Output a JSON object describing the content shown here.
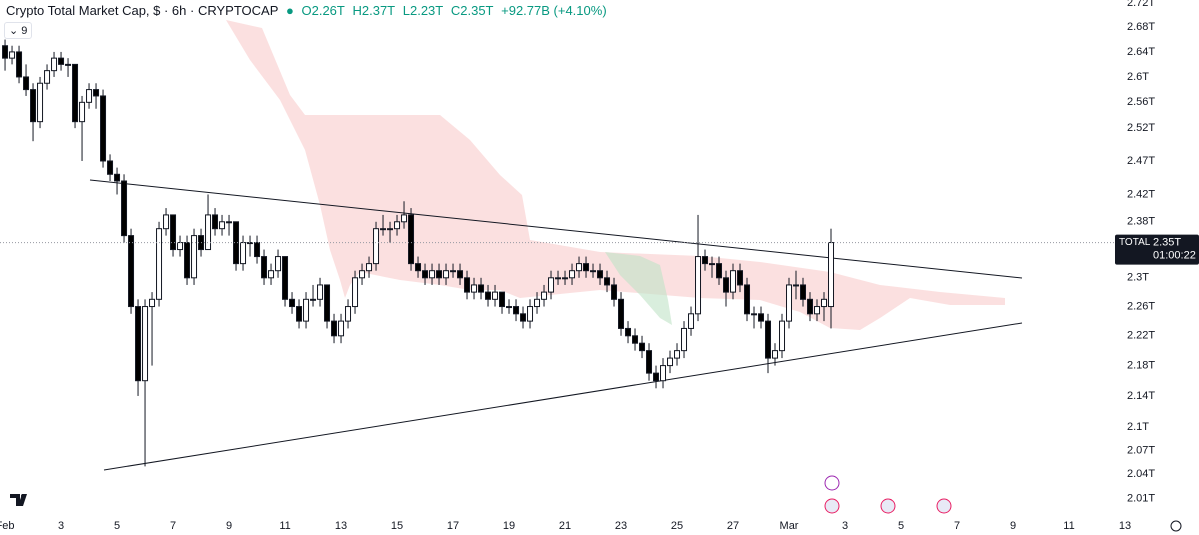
{
  "header": {
    "title": "Crypto Total Market Cap, $ · 6h · CRYPTOCAP",
    "open": "O2.26T",
    "high": "H2.37T",
    "low": "L2.23T",
    "close": "C2.35T",
    "change": "+92.77B (+4.10%)",
    "indicators": "9"
  },
  "chart_data": {
    "type": "candlestick",
    "log_scale": true,
    "up_color": "#ffffff",
    "down_color": "#000000",
    "ylim": [
      1.99,
      2.725
    ],
    "xlim": [
      -0.18,
      41.25
    ],
    "yticks": [
      {
        "value": 2.72,
        "label": "2.72T"
      },
      {
        "value": 2.68,
        "label": "2.68T"
      },
      {
        "value": 2.64,
        "label": "2.64T"
      },
      {
        "value": 2.6,
        "label": "2.6T"
      },
      {
        "value": 2.56,
        "label": "2.56T"
      },
      {
        "value": 2.52,
        "label": "2.52T"
      },
      {
        "value": 2.47,
        "label": "2.47T"
      },
      {
        "value": 2.42,
        "label": "2.42T"
      },
      {
        "value": 2.38,
        "label": "2.38T"
      },
      {
        "value": 2.3,
        "label": "2.3T"
      },
      {
        "value": 2.26,
        "label": "2.26T"
      },
      {
        "value": 2.22,
        "label": "2.22T"
      },
      {
        "value": 2.18,
        "label": "2.18T"
      },
      {
        "value": 2.14,
        "label": "2.14T"
      },
      {
        "value": 2.1,
        "label": "2.1T"
      },
      {
        "value": 2.07,
        "label": "2.07T"
      },
      {
        "value": 2.04,
        "label": "2.04T"
      },
      {
        "value": 2.01,
        "label": "2.01T"
      }
    ],
    "xticks": [
      {
        "value": 0,
        "label": "Feb"
      },
      {
        "value": 2,
        "label": "3"
      },
      {
        "value": 4,
        "label": "5"
      },
      {
        "value": 6,
        "label": "7"
      },
      {
        "value": 8,
        "label": "9"
      },
      {
        "value": 10,
        "label": "11"
      },
      {
        "value": 12,
        "label": "13"
      },
      {
        "value": 14,
        "label": "15"
      },
      {
        "value": 16,
        "label": "17"
      },
      {
        "value": 18,
        "label": "19"
      },
      {
        "value": 20,
        "label": "21"
      },
      {
        "value": 22,
        "label": "23"
      },
      {
        "value": 24,
        "label": "25"
      },
      {
        "value": 26,
        "label": "27"
      },
      {
        "value": 28,
        "label": "Mar"
      },
      {
        "value": 30,
        "label": "3"
      },
      {
        "value": 32,
        "label": "5"
      },
      {
        "value": 34,
        "label": "7"
      },
      {
        "value": 36,
        "label": "9"
      },
      {
        "value": 38,
        "label": "11"
      },
      {
        "value": 40,
        "label": "13"
      }
    ],
    "price_line": {
      "name": "TOTAL",
      "value": 2.35,
      "label": "2.35T",
      "countdown": "01:00:22"
    },
    "x": [
      0,
      0.25,
      0.5,
      0.75,
      1,
      1.25,
      1.5,
      1.75,
      2,
      2.25,
      2.5,
      2.75,
      3,
      3.25,
      3.5,
      3.75,
      4,
      4.25,
      4.5,
      4.75,
      5,
      5.25,
      5.5,
      5.75,
      6,
      6.25,
      6.5,
      6.75,
      7,
      7.25,
      7.5,
      7.75,
      8,
      8.25,
      8.5,
      8.75,
      9,
      9.25,
      9.5,
      9.75,
      10,
      10.25,
      10.5,
      10.75,
      11,
      11.25,
      11.5,
      11.75,
      12,
      12.25,
      12.5,
      12.75,
      13,
      13.25,
      13.5,
      13.75,
      14,
      14.25,
      14.5,
      14.75,
      15,
      15.25,
      15.5,
      15.75,
      16,
      16.25,
      16.5,
      16.75,
      17,
      17.25,
      17.5,
      17.75,
      18,
      18.25,
      18.5,
      18.75,
      19,
      19.25,
      19.5,
      19.75,
      20,
      20.25,
      20.5,
      20.75,
      21,
      21.25,
      21.5,
      21.75,
      22,
      22.25,
      22.5,
      22.75,
      23,
      23.25,
      23.5,
      23.75,
      24,
      24.25,
      24.5,
      24.75,
      25,
      25.25,
      25.5,
      25.75,
      26,
      26.25,
      26.5,
      26.75,
      27,
      27.25,
      27.5,
      27.75,
      28,
      28.25,
      28.5,
      28.75,
      29,
      29.25,
      29.5
    ],
    "ohlc": [
      [
        2.65,
        2.66,
        2.61,
        2.63
      ],
      [
        2.63,
        2.65,
        2.62,
        2.64
      ],
      [
        2.64,
        2.65,
        2.59,
        2.6
      ],
      [
        2.6,
        2.62,
        2.57,
        2.58
      ],
      [
        2.58,
        2.59,
        2.5,
        2.53
      ],
      [
        2.53,
        2.6,
        2.52,
        2.59
      ],
      [
        2.59,
        2.62,
        2.58,
        2.61
      ],
      [
        2.61,
        2.64,
        2.6,
        2.63
      ],
      [
        2.63,
        2.64,
        2.61,
        2.62
      ],
      [
        2.62,
        2.63,
        2.6,
        2.62
      ],
      [
        2.62,
        2.62,
        2.52,
        2.53
      ],
      [
        2.53,
        2.57,
        2.47,
        2.56
      ],
      [
        2.56,
        2.59,
        2.55,
        2.58
      ],
      [
        2.58,
        2.59,
        2.55,
        2.57
      ],
      [
        2.57,
        2.58,
        2.46,
        2.47
      ],
      [
        2.47,
        2.48,
        2.44,
        2.45
      ],
      [
        2.45,
        2.46,
        2.42,
        2.44
      ],
      [
        2.44,
        2.45,
        2.35,
        2.36
      ],
      [
        2.36,
        2.37,
        2.25,
        2.26
      ],
      [
        2.26,
        2.27,
        2.14,
        2.16
      ],
      [
        2.16,
        2.27,
        2.05,
        2.26
      ],
      [
        2.26,
        2.28,
        2.18,
        2.27
      ],
      [
        2.27,
        2.38,
        2.26,
        2.37
      ],
      [
        2.37,
        2.4,
        2.36,
        2.39
      ],
      [
        2.39,
        2.39,
        2.33,
        2.34
      ],
      [
        2.34,
        2.36,
        2.33,
        2.35
      ],
      [
        2.35,
        2.36,
        2.29,
        2.3
      ],
      [
        2.3,
        2.37,
        2.29,
        2.36
      ],
      [
        2.36,
        2.37,
        2.33,
        2.34
      ],
      [
        2.34,
        2.42,
        2.34,
        2.39
      ],
      [
        2.39,
        2.4,
        2.36,
        2.37
      ],
      [
        2.37,
        2.39,
        2.36,
        2.38
      ],
      [
        2.38,
        2.39,
        2.36,
        2.38
      ],
      [
        2.38,
        2.38,
        2.31,
        2.32
      ],
      [
        2.32,
        2.36,
        2.31,
        2.35
      ],
      [
        2.35,
        2.36,
        2.33,
        2.35
      ],
      [
        2.35,
        2.36,
        2.32,
        2.33
      ],
      [
        2.33,
        2.34,
        2.29,
        2.3
      ],
      [
        2.3,
        2.32,
        2.29,
        2.31
      ],
      [
        2.31,
        2.34,
        2.3,
        2.33
      ],
      [
        2.33,
        2.33,
        2.26,
        2.27
      ],
      [
        2.27,
        2.28,
        2.25,
        2.26
      ],
      [
        2.26,
        2.27,
        2.23,
        2.24
      ],
      [
        2.24,
        2.28,
        2.23,
        2.27
      ],
      [
        2.27,
        2.29,
        2.26,
        2.27
      ],
      [
        2.27,
        2.3,
        2.26,
        2.29
      ],
      [
        2.29,
        2.29,
        2.23,
        2.24
      ],
      [
        2.24,
        2.25,
        2.21,
        2.22
      ],
      [
        2.22,
        2.25,
        2.21,
        2.24
      ],
      [
        2.24,
        2.27,
        2.23,
        2.26
      ],
      [
        2.26,
        2.31,
        2.25,
        2.3
      ],
      [
        2.3,
        2.32,
        2.29,
        2.31
      ],
      [
        2.31,
        2.33,
        2.3,
        2.32
      ],
      [
        2.32,
        2.38,
        2.31,
        2.37
      ],
      [
        2.37,
        2.39,
        2.36,
        2.37
      ],
      [
        2.37,
        2.38,
        2.35,
        2.37
      ],
      [
        2.37,
        2.39,
        2.36,
        2.38
      ],
      [
        2.38,
        2.41,
        2.37,
        2.39
      ],
      [
        2.39,
        2.4,
        2.31,
        2.32
      ],
      [
        2.32,
        2.33,
        2.3,
        2.31
      ],
      [
        2.31,
        2.32,
        2.29,
        2.3
      ],
      [
        2.3,
        2.32,
        2.29,
        2.31
      ],
      [
        2.31,
        2.32,
        2.29,
        2.3
      ],
      [
        2.3,
        2.32,
        2.29,
        2.31
      ],
      [
        2.31,
        2.32,
        2.3,
        2.31
      ],
      [
        2.31,
        2.32,
        2.29,
        2.3
      ],
      [
        2.3,
        2.31,
        2.27,
        2.28
      ],
      [
        2.28,
        2.3,
        2.27,
        2.29
      ],
      [
        2.29,
        2.3,
        2.27,
        2.28
      ],
      [
        2.28,
        2.29,
        2.26,
        2.27
      ],
      [
        2.27,
        2.29,
        2.26,
        2.28
      ],
      [
        2.28,
        2.28,
        2.25,
        2.26
      ],
      [
        2.26,
        2.27,
        2.25,
        2.26
      ],
      [
        2.26,
        2.27,
        2.24,
        2.25
      ],
      [
        2.25,
        2.26,
        2.23,
        2.24
      ],
      [
        2.24,
        2.27,
        2.23,
        2.26
      ],
      [
        2.26,
        2.28,
        2.25,
        2.27
      ],
      [
        2.27,
        2.29,
        2.26,
        2.28
      ],
      [
        2.28,
        2.31,
        2.27,
        2.3
      ],
      [
        2.3,
        2.31,
        2.29,
        2.3
      ],
      [
        2.3,
        2.31,
        2.29,
        2.3
      ],
      [
        2.3,
        2.32,
        2.29,
        2.31
      ],
      [
        2.31,
        2.33,
        2.3,
        2.32
      ],
      [
        2.32,
        2.33,
        2.3,
        2.31
      ],
      [
        2.31,
        2.32,
        2.3,
        2.31
      ],
      [
        2.31,
        2.32,
        2.29,
        2.3
      ],
      [
        2.3,
        2.31,
        2.28,
        2.29
      ],
      [
        2.29,
        2.3,
        2.26,
        2.27
      ],
      [
        2.27,
        2.28,
        2.22,
        2.23
      ],
      [
        2.23,
        2.24,
        2.21,
        2.22
      ],
      [
        2.22,
        2.23,
        2.2,
        2.21
      ],
      [
        2.21,
        2.22,
        2.19,
        2.2
      ],
      [
        2.2,
        2.21,
        2.16,
        2.17
      ],
      [
        2.17,
        2.18,
        2.15,
        2.16
      ],
      [
        2.16,
        2.19,
        2.15,
        2.18
      ],
      [
        2.18,
        2.2,
        2.17,
        2.19
      ],
      [
        2.19,
        2.21,
        2.18,
        2.2
      ],
      [
        2.2,
        2.24,
        2.19,
        2.23
      ],
      [
        2.23,
        2.26,
        2.22,
        2.25
      ],
      [
        2.25,
        2.39,
        2.24,
        2.33
      ],
      [
        2.33,
        2.34,
        2.31,
        2.32
      ],
      [
        2.32,
        2.33,
        2.3,
        2.32
      ],
      [
        2.32,
        2.33,
        2.29,
        2.3
      ],
      [
        2.3,
        2.31,
        2.26,
        2.28
      ],
      [
        2.28,
        2.32,
        2.27,
        2.31
      ],
      [
        2.31,
        2.32,
        2.28,
        2.29
      ],
      [
        2.29,
        2.3,
        2.24,
        2.25
      ],
      [
        2.25,
        2.26,
        2.23,
        2.25
      ],
      [
        2.25,
        2.26,
        2.23,
        2.24
      ],
      [
        2.24,
        2.25,
        2.17,
        2.19
      ],
      [
        2.19,
        2.21,
        2.18,
        2.2
      ],
      [
        2.2,
        2.25,
        2.19,
        2.24
      ],
      [
        2.24,
        2.3,
        2.23,
        2.29
      ],
      [
        2.29,
        2.31,
        2.27,
        2.29
      ],
      [
        2.29,
        2.3,
        2.26,
        2.27
      ],
      [
        2.27,
        2.28,
        2.24,
        2.25
      ],
      [
        2.25,
        2.27,
        2.24,
        2.26
      ],
      [
        2.26,
        2.28,
        2.24,
        2.27
      ],
      [
        2.26,
        2.37,
        2.23,
        2.35
      ]
    ]
  }
}
